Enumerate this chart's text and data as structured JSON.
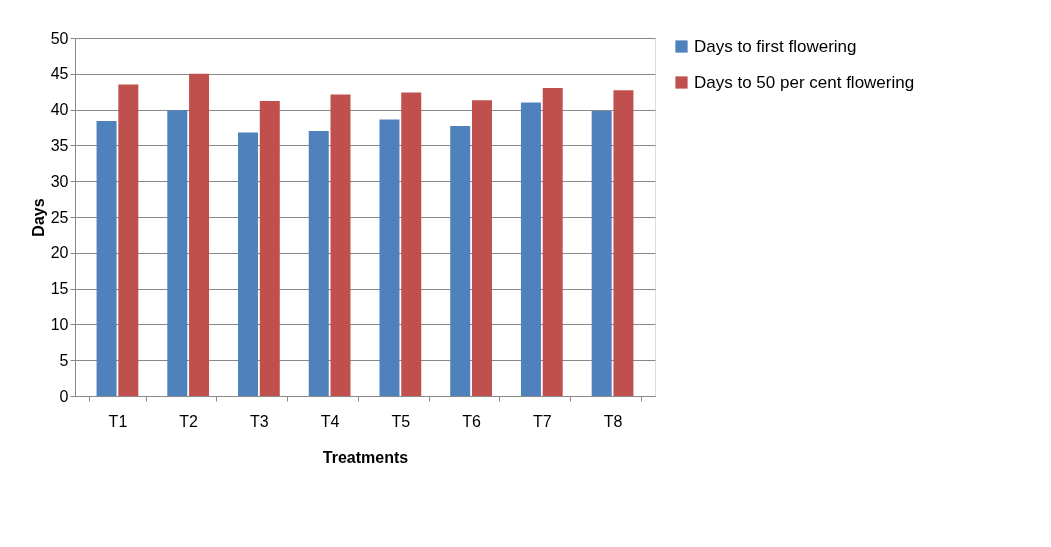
{
  "chart_data": {
    "type": "bar",
    "xlabel": "Treatments",
    "ylabel": "Days",
    "categories": [
      "T1",
      "T2",
      "T3",
      "T4",
      "T5",
      "T6",
      "T7",
      "T8"
    ],
    "series": [
      {
        "name": "Days to first flowering",
        "color": "#4f81bd",
        "values": [
          38.4,
          39.9,
          36.8,
          37.0,
          38.6,
          37.7,
          41.0,
          39.8
        ]
      },
      {
        "name": "Days to 50  per cent flowering",
        "color": "#c0504d",
        "values": [
          43.5,
          45.0,
          41.2,
          42.1,
          42.4,
          41.3,
          43.0,
          42.7
        ]
      }
    ],
    "ylim": [
      0,
      50
    ],
    "yticks": [
      0,
      5,
      10,
      15,
      20,
      25,
      30,
      35,
      40,
      45,
      50
    ],
    "grid": "y",
    "legend": "right"
  }
}
